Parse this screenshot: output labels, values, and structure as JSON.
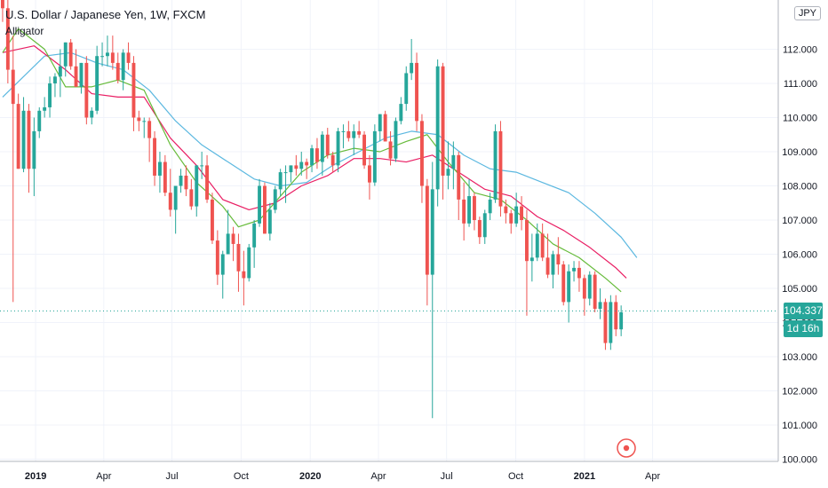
{
  "header": {
    "title": "U.S. Dollar / Japanese Yen, 1W, FXCM",
    "indicator": "Alligator",
    "currency": "JPY"
  },
  "price_tag": {
    "value": "104.337",
    "countdown": "1d 16h",
    "color": "#26a69a"
  },
  "colors": {
    "up": "#26a69a",
    "down": "#ef5350",
    "jaw": "#5cb8e0",
    "teeth": "#e91e63",
    "lips": "#66bb3a",
    "grid": "#f0f3fa",
    "axis_text": "#131722"
  },
  "chart_data": {
    "type": "candlestick",
    "y_ticks": [
      "100.000",
      "101.000",
      "102.000",
      "103.000",
      "104.000",
      "105.000",
      "106.000",
      "107.000",
      "108.000",
      "109.000",
      "110.000",
      "111.000",
      "112.000"
    ],
    "ylim": [
      99.8,
      113.4
    ],
    "x_ticks": [
      {
        "label": "2019",
        "x": 6.8
      },
      {
        "label": "Apr",
        "x": 19.8
      },
      {
        "label": "Jul",
        "x": 32.8
      },
      {
        "label": "Oct",
        "x": 46
      },
      {
        "label": "2020",
        "x": 59.2
      },
      {
        "label": "Apr",
        "x": 72.2
      },
      {
        "label": "Jul",
        "x": 85.2
      },
      {
        "label": "Oct",
        "x": 98.4
      },
      {
        "label": "2021",
        "x": 111.5
      },
      {
        "label": "Apr",
        "x": 124.5
      }
    ],
    "ohlc": [
      [
        113.5,
        114.0,
        112.8,
        113.2
      ],
      [
        113.2,
        113.6,
        111.0,
        111.4
      ],
      [
        111.4,
        112.4,
        104.6,
        110.4
      ],
      [
        110.4,
        110.7,
        108.5,
        108.5
      ],
      [
        108.5,
        110.6,
        108.4,
        110.2
      ],
      [
        110.2,
        110.4,
        107.8,
        108.5
      ],
      [
        108.5,
        110.0,
        107.7,
        109.6
      ],
      [
        109.6,
        110.3,
        109.4,
        110.2
      ],
      [
        110.2,
        110.6,
        110.0,
        110.3
      ],
      [
        110.3,
        111.2,
        110.0,
        111.0
      ],
      [
        111.0,
        111.3,
        110.6,
        111.2
      ],
      [
        111.2,
        112.0,
        110.6,
        111.5
      ],
      [
        111.5,
        112.2,
        111.2,
        112.2
      ],
      [
        112.2,
        112.3,
        111.4,
        111.5
      ],
      [
        111.5,
        112.0,
        110.9,
        110.9
      ],
      [
        110.9,
        111.6,
        110.7,
        111.6
      ],
      [
        111.6,
        111.8,
        109.8,
        110.0
      ],
      [
        110.0,
        110.3,
        109.8,
        110.2
      ],
      [
        110.2,
        112.1,
        110.1,
        111.8
      ],
      [
        111.8,
        112.2,
        111.5,
        111.8
      ],
      [
        111.8,
        112.4,
        111.5,
        111.9
      ],
      [
        111.9,
        112.4,
        111.4,
        111.6
      ],
      [
        111.6,
        111.9,
        111.0,
        111.1
      ],
      [
        111.1,
        112.0,
        110.8,
        111.9
      ],
      [
        111.9,
        112.2,
        111.4,
        111.6
      ],
      [
        111.6,
        111.8,
        109.6,
        110.0
      ],
      [
        110.0,
        110.2,
        109.6,
        109.9
      ],
      [
        109.9,
        110.0,
        109.4,
        109.9
      ],
      [
        109.9,
        110.0,
        108.7,
        109.4
      ],
      [
        109.4,
        109.6,
        108.0,
        108.3
      ],
      [
        108.3,
        109.0,
        107.8,
        108.7
      ],
      [
        108.7,
        108.9,
        107.7,
        107.8
      ],
      [
        107.8,
        108.5,
        107.1,
        107.3
      ],
      [
        107.3,
        108.0,
        106.6,
        108.0
      ],
      [
        108.0,
        108.5,
        107.8,
        108.3
      ],
      [
        108.3,
        108.6,
        107.7,
        107.9
      ],
      [
        107.9,
        108.2,
        107.3,
        107.4
      ],
      [
        107.4,
        108.6,
        107.1,
        108.6
      ],
      [
        108.6,
        109.0,
        108.2,
        108.6
      ],
      [
        108.6,
        108.9,
        107.5,
        107.6
      ],
      [
        107.6,
        107.8,
        106.3,
        106.4
      ],
      [
        106.4,
        106.7,
        105.1,
        105.4
      ],
      [
        105.4,
        106.1,
        104.7,
        106.0
      ],
      [
        106.0,
        107.3,
        106.0,
        106.6
      ],
      [
        106.6,
        106.8,
        105.8,
        106.3
      ],
      [
        106.3,
        106.6,
        104.9,
        105.5
      ],
      [
        105.5,
        106.1,
        104.5,
        105.3
      ],
      [
        105.3,
        106.3,
        105.2,
        106.2
      ],
      [
        106.2,
        107.0,
        105.6,
        106.9
      ],
      [
        106.9,
        108.2,
        106.8,
        108.0
      ],
      [
        108.0,
        108.1,
        106.6,
        106.6
      ],
      [
        106.6,
        107.5,
        106.4,
        107.3
      ],
      [
        107.3,
        108.0,
        107.2,
        107.9
      ],
      [
        107.9,
        108.5,
        107.7,
        108.4
      ],
      [
        108.4,
        108.6,
        107.5,
        108.4
      ],
      [
        108.4,
        108.6,
        108.1,
        108.6
      ],
      [
        108.6,
        108.9,
        108.3,
        108.5
      ],
      [
        108.5,
        109.0,
        108.3,
        108.7
      ],
      [
        108.7,
        108.8,
        108.2,
        108.6
      ],
      [
        108.6,
        109.2,
        108.4,
        109.1
      ],
      [
        109.1,
        109.4,
        108.5,
        108.7
      ],
      [
        108.7,
        109.6,
        108.3,
        109.5
      ],
      [
        109.5,
        109.7,
        108.8,
        108.9
      ],
      [
        108.9,
        109.0,
        108.4,
        108.6
      ],
      [
        108.6,
        109.7,
        108.4,
        109.6
      ],
      [
        109.6,
        109.8,
        109.1,
        109.6
      ],
      [
        109.6,
        109.9,
        109.3,
        109.4
      ],
      [
        109.4,
        109.8,
        108.9,
        109.6
      ],
      [
        109.6,
        109.9,
        109.4,
        109.5
      ],
      [
        109.5,
        109.6,
        108.5,
        108.6
      ],
      [
        108.6,
        108.9,
        107.6,
        108.1
      ],
      [
        108.1,
        109.8,
        108.0,
        109.6
      ],
      [
        109.6,
        110.1,
        109.3,
        110.1
      ],
      [
        110.1,
        110.2,
        109.3,
        109.3
      ],
      [
        109.3,
        109.6,
        108.6,
        108.8
      ],
      [
        108.8,
        110.0,
        108.7,
        109.9
      ],
      [
        109.9,
        110.6,
        109.8,
        110.4
      ],
      [
        110.4,
        111.5,
        110.2,
        111.3
      ],
      [
        111.3,
        112.3,
        111.1,
        111.6
      ],
      [
        111.6,
        111.9,
        109.6,
        109.9
      ],
      [
        109.9,
        110.1,
        107.5,
        108.0
      ],
      [
        108.0,
        108.2,
        104.5,
        105.4
      ],
      [
        105.4,
        108.7,
        101.2,
        107.9
      ],
      [
        107.9,
        111.7,
        107.4,
        111.5
      ],
      [
        111.5,
        111.6,
        107.6,
        108.3
      ],
      [
        108.3,
        109.3,
        107.9,
        108.5
      ],
      [
        108.5,
        109.3,
        107.9,
        108.9
      ],
      [
        108.9,
        109.0,
        107.0,
        107.6
      ],
      [
        107.6,
        108.1,
        106.4,
        106.9
      ],
      [
        106.9,
        108.2,
        106.8,
        107.7
      ],
      [
        107.7,
        107.8,
        106.7,
        107.0
      ],
      [
        107.0,
        107.1,
        106.3,
        106.5
      ],
      [
        106.5,
        107.3,
        106.3,
        107.2
      ],
      [
        107.2,
        107.8,
        107.0,
        107.6
      ],
      [
        107.6,
        109.8,
        107.5,
        109.6
      ],
      [
        109.6,
        109.9,
        107.1,
        107.4
      ],
      [
        107.4,
        107.6,
        106.9,
        107.2
      ],
      [
        107.2,
        107.3,
        106.6,
        106.9
      ],
      [
        106.9,
        107.8,
        106.8,
        107.4
      ],
      [
        107.4,
        107.7,
        106.7,
        107.0
      ],
      [
        107.0,
        107.3,
        104.2,
        105.8
      ],
      [
        105.8,
        106.6,
        105.2,
        105.9
      ],
      [
        105.9,
        106.9,
        105.8,
        106.6
      ],
      [
        106.6,
        106.9,
        105.8,
        105.9
      ],
      [
        105.9,
        106.6,
        105.3,
        105.4
      ],
      [
        105.4,
        106.1,
        105.0,
        106.0
      ],
      [
        106.0,
        106.5,
        105.4,
        105.7
      ],
      [
        105.7,
        105.8,
        104.5,
        104.6
      ],
      [
        104.6,
        105.7,
        104.0,
        105.5
      ],
      [
        105.5,
        105.8,
        105.2,
        105.6
      ],
      [
        105.6,
        105.8,
        104.9,
        105.3
      ],
      [
        105.3,
        105.4,
        104.2,
        104.7
      ],
      [
        104.7,
        105.5,
        104.5,
        105.4
      ],
      [
        105.4,
        105.5,
        104.3,
        104.4
      ],
      [
        104.4,
        105.0,
        104.1,
        104.6
      ],
      [
        104.6,
        104.7,
        103.2,
        103.4
      ],
      [
        103.4,
        104.8,
        103.2,
        104.6
      ],
      [
        104.6,
        104.8,
        103.6,
        103.8
      ],
      [
        103.8,
        104.5,
        103.6,
        104.3
      ]
    ],
    "alligator": {
      "jaw": [
        [
          0,
          110.6
        ],
        [
          8,
          111.8
        ],
        [
          13,
          111.9
        ],
        [
          18,
          111.6
        ],
        [
          23,
          111.4
        ],
        [
          28,
          110.8
        ],
        [
          33,
          109.9
        ],
        [
          38,
          109.2
        ],
        [
          43,
          108.7
        ],
        [
          48,
          108.2
        ],
        [
          53,
          108.0
        ],
        [
          58,
          108.1
        ],
        [
          63,
          108.6
        ],
        [
          68,
          109.0
        ],
        [
          73,
          109.4
        ],
        [
          78,
          109.6
        ],
        [
          83,
          109.5
        ],
        [
          88,
          108.9
        ],
        [
          93,
          108.5
        ],
        [
          98,
          108.4
        ],
        [
          103,
          108.1
        ],
        [
          108,
          107.8
        ],
        [
          113,
          107.2
        ],
        [
          118,
          106.5
        ],
        [
          121,
          105.9
        ]
      ],
      "teeth": [
        [
          0,
          111.9
        ],
        [
          6,
          112.1
        ],
        [
          12,
          111.4
        ],
        [
          17,
          110.7
        ],
        [
          22,
          110.6
        ],
        [
          27,
          110.6
        ],
        [
          32,
          109.4
        ],
        [
          37,
          108.6
        ],
        [
          42,
          107.6
        ],
        [
          47,
          107.3
        ],
        [
          52,
          107.5
        ],
        [
          57,
          108.0
        ],
        [
          62,
          108.3
        ],
        [
          67,
          108.8
        ],
        [
          72,
          108.8
        ],
        [
          77,
          108.7
        ],
        [
          82,
          108.9
        ],
        [
          87,
          108.4
        ],
        [
          92,
          107.9
        ],
        [
          97,
          107.7
        ],
        [
          102,
          107.1
        ],
        [
          107,
          106.7
        ],
        [
          112,
          106.2
        ],
        [
          117,
          105.6
        ],
        [
          119,
          105.3
        ]
      ],
      "lips": [
        [
          0,
          111.9
        ],
        [
          3,
          112.6
        ],
        [
          8,
          112.0
        ],
        [
          12,
          110.9
        ],
        [
          17,
          110.9
        ],
        [
          22,
          111.1
        ],
        [
          27,
          110.8
        ],
        [
          32,
          109.2
        ],
        [
          37,
          108.1
        ],
        [
          42,
          107.4
        ],
        [
          45,
          106.8
        ],
        [
          49,
          107.0
        ],
        [
          53,
          107.7
        ],
        [
          57,
          108.4
        ],
        [
          62,
          108.9
        ],
        [
          67,
          109.1
        ],
        [
          72,
          109.0
        ],
        [
          77,
          109.3
        ],
        [
          81,
          109.5
        ],
        [
          85,
          108.7
        ],
        [
          90,
          107.8
        ],
        [
          95,
          107.6
        ],
        [
          100,
          107.0
        ],
        [
          105,
          106.3
        ],
        [
          110,
          105.9
        ],
        [
          115,
          105.3
        ],
        [
          118,
          104.9
        ]
      ]
    },
    "ylabel": "JPY"
  },
  "annotation": {
    "color": "#ef5350"
  }
}
